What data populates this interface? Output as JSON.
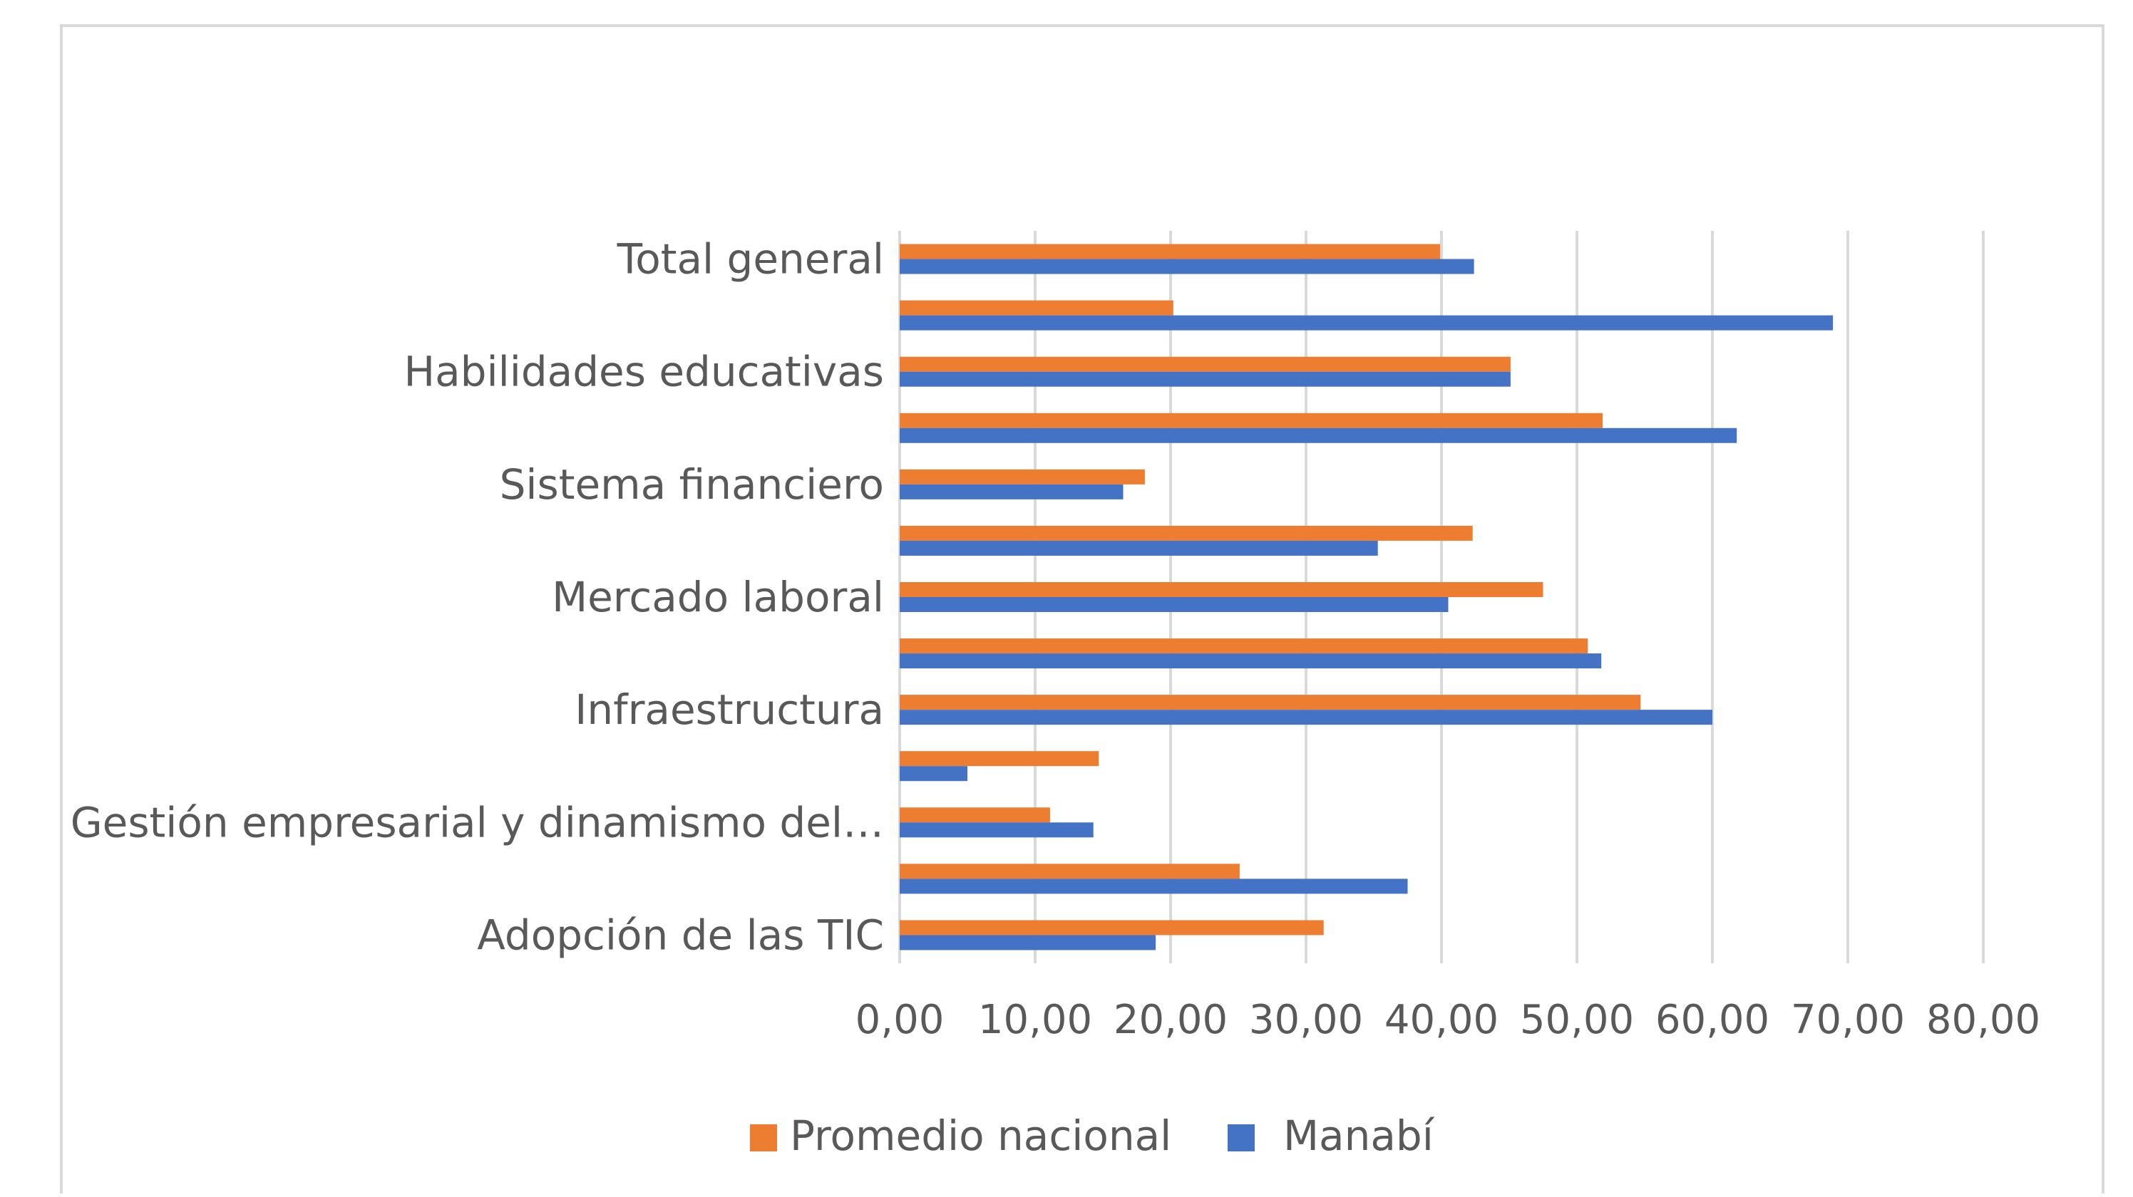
{
  "chart_data": {
    "type": "bar",
    "orientation": "horizontal",
    "title": "",
    "xlabel": "",
    "ylabel": "",
    "xlim": [
      0,
      80
    ],
    "ticks": [
      0,
      10,
      20,
      30,
      40,
      50,
      60,
      70,
      80
    ],
    "tick_labels": [
      "0,00",
      "10,00",
      "20,00",
      "30,00",
      "40,00",
      "50,00",
      "60,00",
      "70,00",
      "80,00"
    ],
    "grid": true,
    "legend_position": "bottom",
    "categories": [
      "Adopción de las TIC",
      "",
      "Gestión empresarial y dinamismo del…",
      "",
      "Infraestructura",
      "",
      "Mercado laboral",
      "",
      "Sistema financiero",
      "",
      "Habilidades educativas",
      "",
      "Total general"
    ],
    "series": [
      {
        "name": "Promedio nacional",
        "color": "#ED7D31",
        "values": [
          31.3,
          25.1,
          11.1,
          14.7,
          54.7,
          50.8,
          47.5,
          42.3,
          18.1,
          51.9,
          45.1,
          20.2,
          39.9
        ]
      },
      {
        "name": "Manabí",
        "color": "#4472C4",
        "values": [
          18.9,
          37.5,
          14.3,
          5.0,
          60.0,
          51.8,
          40.5,
          35.3,
          16.5,
          61.8,
          45.1,
          68.9,
          42.4
        ]
      }
    ]
  }
}
